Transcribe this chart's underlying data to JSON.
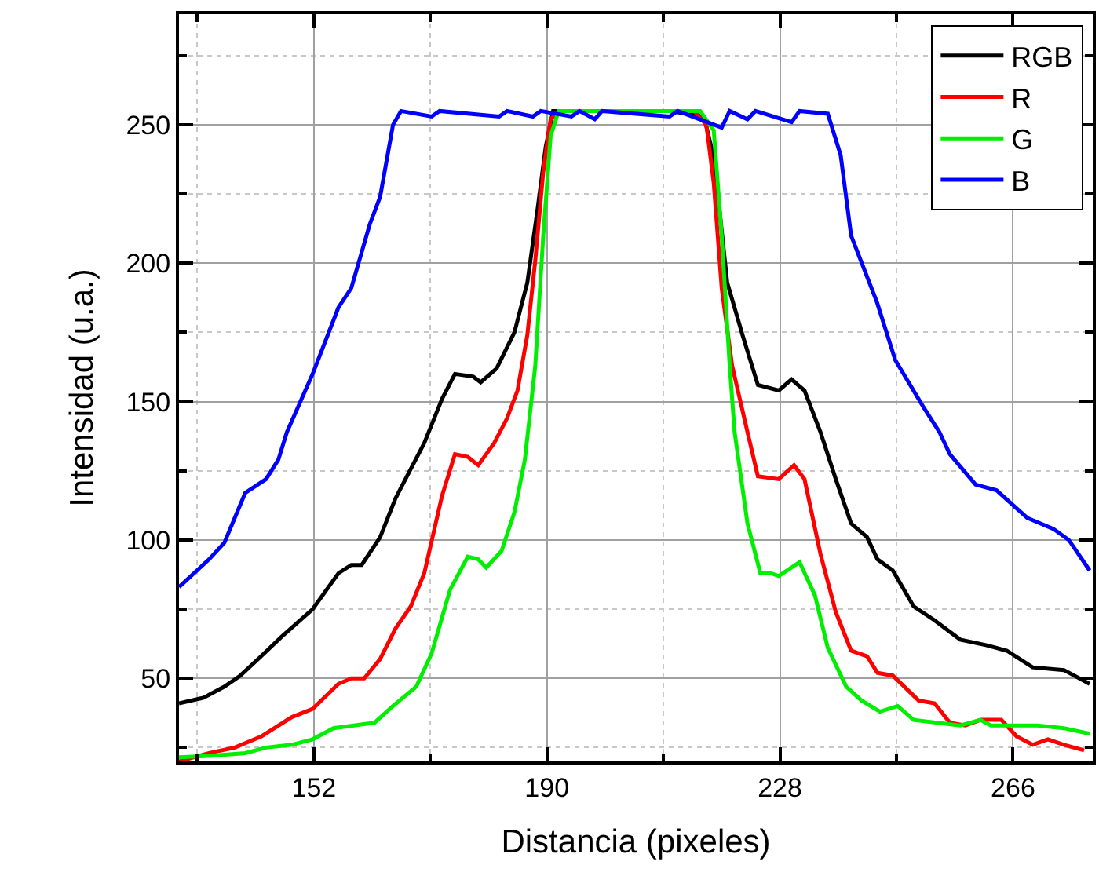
{
  "chart_data": {
    "type": "line",
    "xlabel": "Distancia (pixeles)",
    "ylabel": "Intensidad (u.a.)",
    "xlim": [
      130,
      279
    ],
    "ylim": [
      20,
      290
    ],
    "xticks": [
      {
        "value": 133,
        "label": null
      },
      152,
      {
        "value": 171,
        "label": null
      },
      190,
      {
        "value": 209,
        "label": null
      },
      228,
      {
        "value": 247,
        "label": null
      },
      266
    ],
    "yticks": [
      {
        "value": 25,
        "label": null
      },
      50,
      {
        "value": 75,
        "label": null
      },
      100,
      {
        "value": 125,
        "label": null
      },
      150,
      {
        "value": 175,
        "label": null
      },
      200,
      {
        "value": 225,
        "label": null
      },
      250,
      {
        "value": 275,
        "label": null
      }
    ],
    "grid": true,
    "legend": "top right",
    "line_style": "solid",
    "marker": "none",
    "series": [
      {
        "name": "RGB",
        "color": "#000000",
        "x": [
          130,
          134,
          137.4,
          140,
          143.4,
          146.7,
          151.8,
          156,
          158.1,
          159.8,
          162.8,
          165.3,
          167.4,
          170,
          172.9,
          175,
          178,
          179.2,
          181.8,
          184.7,
          186.8,
          188.5,
          189.8,
          191,
          210,
          215.6,
          216.8,
          218.1,
          219.4,
          221.9,
          224.4,
          227.8,
          229.9,
          232,
          234.6,
          237.1,
          239.6,
          242.2,
          243.9,
          246.4,
          249.8,
          253.2,
          257.4,
          261.6,
          265,
          269.2,
          274.3,
          278.5
        ],
        "values": [
          41,
          43,
          47,
          51,
          58,
          65,
          75,
          88,
          91,
          91,
          101,
          115,
          124,
          135,
          151,
          160,
          159,
          157,
          162,
          175,
          193,
          220,
          242,
          255,
          255,
          253,
          242,
          220,
          193,
          174,
          156,
          154,
          158,
          154,
          139,
          122,
          106,
          101,
          93,
          89,
          76,
          71,
          64,
          62,
          60,
          54,
          53,
          48
        ]
      },
      {
        "name": "R",
        "color": "#ff0000",
        "x": [
          130,
          134.9,
          139.1,
          143.4,
          148.4,
          151.8,
          156,
          158.1,
          160.2,
          162.8,
          165.3,
          167.8,
          170,
          172.9,
          175,
          177.1,
          178.8,
          181.4,
          183.5,
          185.2,
          186.8,
          188.1,
          189.4,
          190.6,
          192,
          214,
          216,
          217.2,
          218.5,
          220.2,
          222.7,
          224.4,
          227.8,
          230.3,
          232,
          234.6,
          237.1,
          239.6,
          242.2,
          243.9,
          246.4,
          250.6,
          253.2,
          255.7,
          258.2,
          260.7,
          264.1,
          266.6,
          269.2,
          271.7,
          274.3,
          277.6
        ],
        "values": [
          20,
          23,
          25,
          29,
          36,
          39,
          48,
          50,
          50,
          57,
          68,
          76,
          88,
          116,
          131,
          130,
          127,
          135,
          144,
          154,
          174,
          201,
          233,
          252,
          255,
          255,
          250,
          229,
          191,
          163,
          139,
          123,
          122,
          127,
          122,
          95,
          74,
          60,
          58,
          52,
          51,
          42,
          41,
          34,
          33,
          35,
          35,
          29,
          26,
          28,
          26,
          24
        ]
      },
      {
        "name": "G",
        "color": "#00ee00",
        "x": [
          130,
          134.9,
          140.8,
          144.2,
          148.4,
          151.8,
          155.2,
          158.5,
          161.9,
          164.9,
          168.7,
          171.2,
          174.2,
          177.1,
          178.8,
          180.1,
          182.6,
          184.7,
          186.4,
          188.1,
          189.4,
          190.6,
          191.9,
          200,
          210,
          215,
          217.2,
          218.5,
          219.8,
          220.6,
          222.7,
          224.8,
          226.5,
          227.8,
          231.2,
          233.7,
          235.8,
          238.8,
          241.3,
          244.3,
          247.2,
          249.8,
          257.4,
          260.7,
          262.4,
          270,
          274.3,
          278.5
        ],
        "values": [
          21.5,
          22,
          23,
          25,
          26,
          28,
          32,
          33,
          34,
          40,
          47,
          59,
          82,
          94,
          93,
          90,
          96,
          110,
          129,
          163,
          210,
          246,
          255,
          255,
          255,
          255,
          248,
          210,
          163,
          139,
          106,
          88,
          88,
          87,
          92,
          80,
          61,
          47,
          42,
          38,
          40,
          35,
          33,
          35,
          33,
          33,
          32,
          30
        ]
      },
      {
        "name": "B",
        "color": "#0000ff",
        "x": [
          130,
          134.9,
          137.4,
          140.8,
          144.2,
          146.2,
          147.6,
          151.8,
          156,
          158.1,
          161.1,
          162.8,
          164.9,
          166.2,
          171.2,
          172.5,
          182.2,
          183.5,
          187.7,
          189,
          194,
          195.3,
          197.8,
          199,
          210,
          211.3,
          218.5,
          219.8,
          222.7,
          224,
          229.9,
          231.2,
          235.8,
          237.9,
          239.6,
          243.8,
          246.8,
          251.4,
          254,
          255.7,
          259.9,
          263.3,
          268.3,
          272.6,
          275.1,
          278.5
        ],
        "values": [
          83,
          93,
          99,
          117,
          122,
          129,
          139,
          160,
          184,
          191,
          214,
          224,
          250,
          255,
          253,
          255,
          253,
          255,
          253,
          255,
          253,
          255,
          252,
          255,
          253,
          255,
          249,
          255,
          252,
          255,
          251,
          255,
          254,
          239,
          210,
          186,
          165,
          148,
          139,
          131,
          120,
          118,
          108,
          104,
          100,
          89
        ]
      }
    ]
  }
}
